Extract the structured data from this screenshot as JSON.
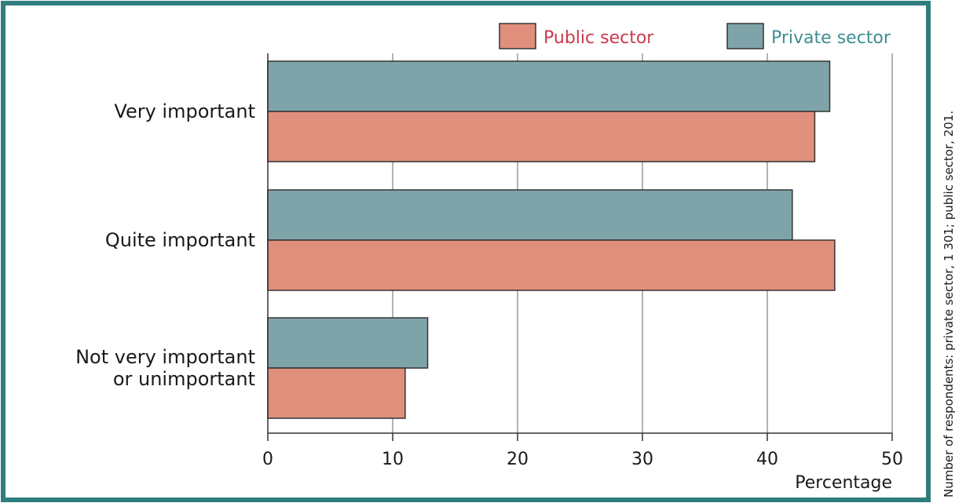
{
  "colors": {
    "frame": "#2f7d7e",
    "public": "#e08f7c",
    "private": "#7ea4aa",
    "public_text": "#c8394a",
    "private_text": "#3f8d92",
    "grid": "#9a9a9a",
    "bar_stroke": "#333333"
  },
  "legend": {
    "public_label": "Public sector",
    "private_label": "Private sector"
  },
  "side_note": "Number of respondents: private sector, 1 301; public sector, 201.",
  "chart_data": {
    "type": "bar",
    "orientation": "horizontal",
    "categories": [
      [
        "Very important"
      ],
      [
        "Quite important"
      ],
      [
        "Not very important",
        "or unimportant"
      ]
    ],
    "series": [
      {
        "name": "Private sector",
        "values": [
          45,
          42,
          12.8
        ]
      },
      {
        "name": "Public sector",
        "values": [
          43.8,
          45.4,
          11
        ]
      }
    ],
    "xlabel": "Percentage",
    "xlim": [
      0,
      50
    ],
    "xticks": [
      0,
      10,
      20,
      30,
      40,
      50
    ],
    "grid": true,
    "legend_position": "top-right"
  }
}
